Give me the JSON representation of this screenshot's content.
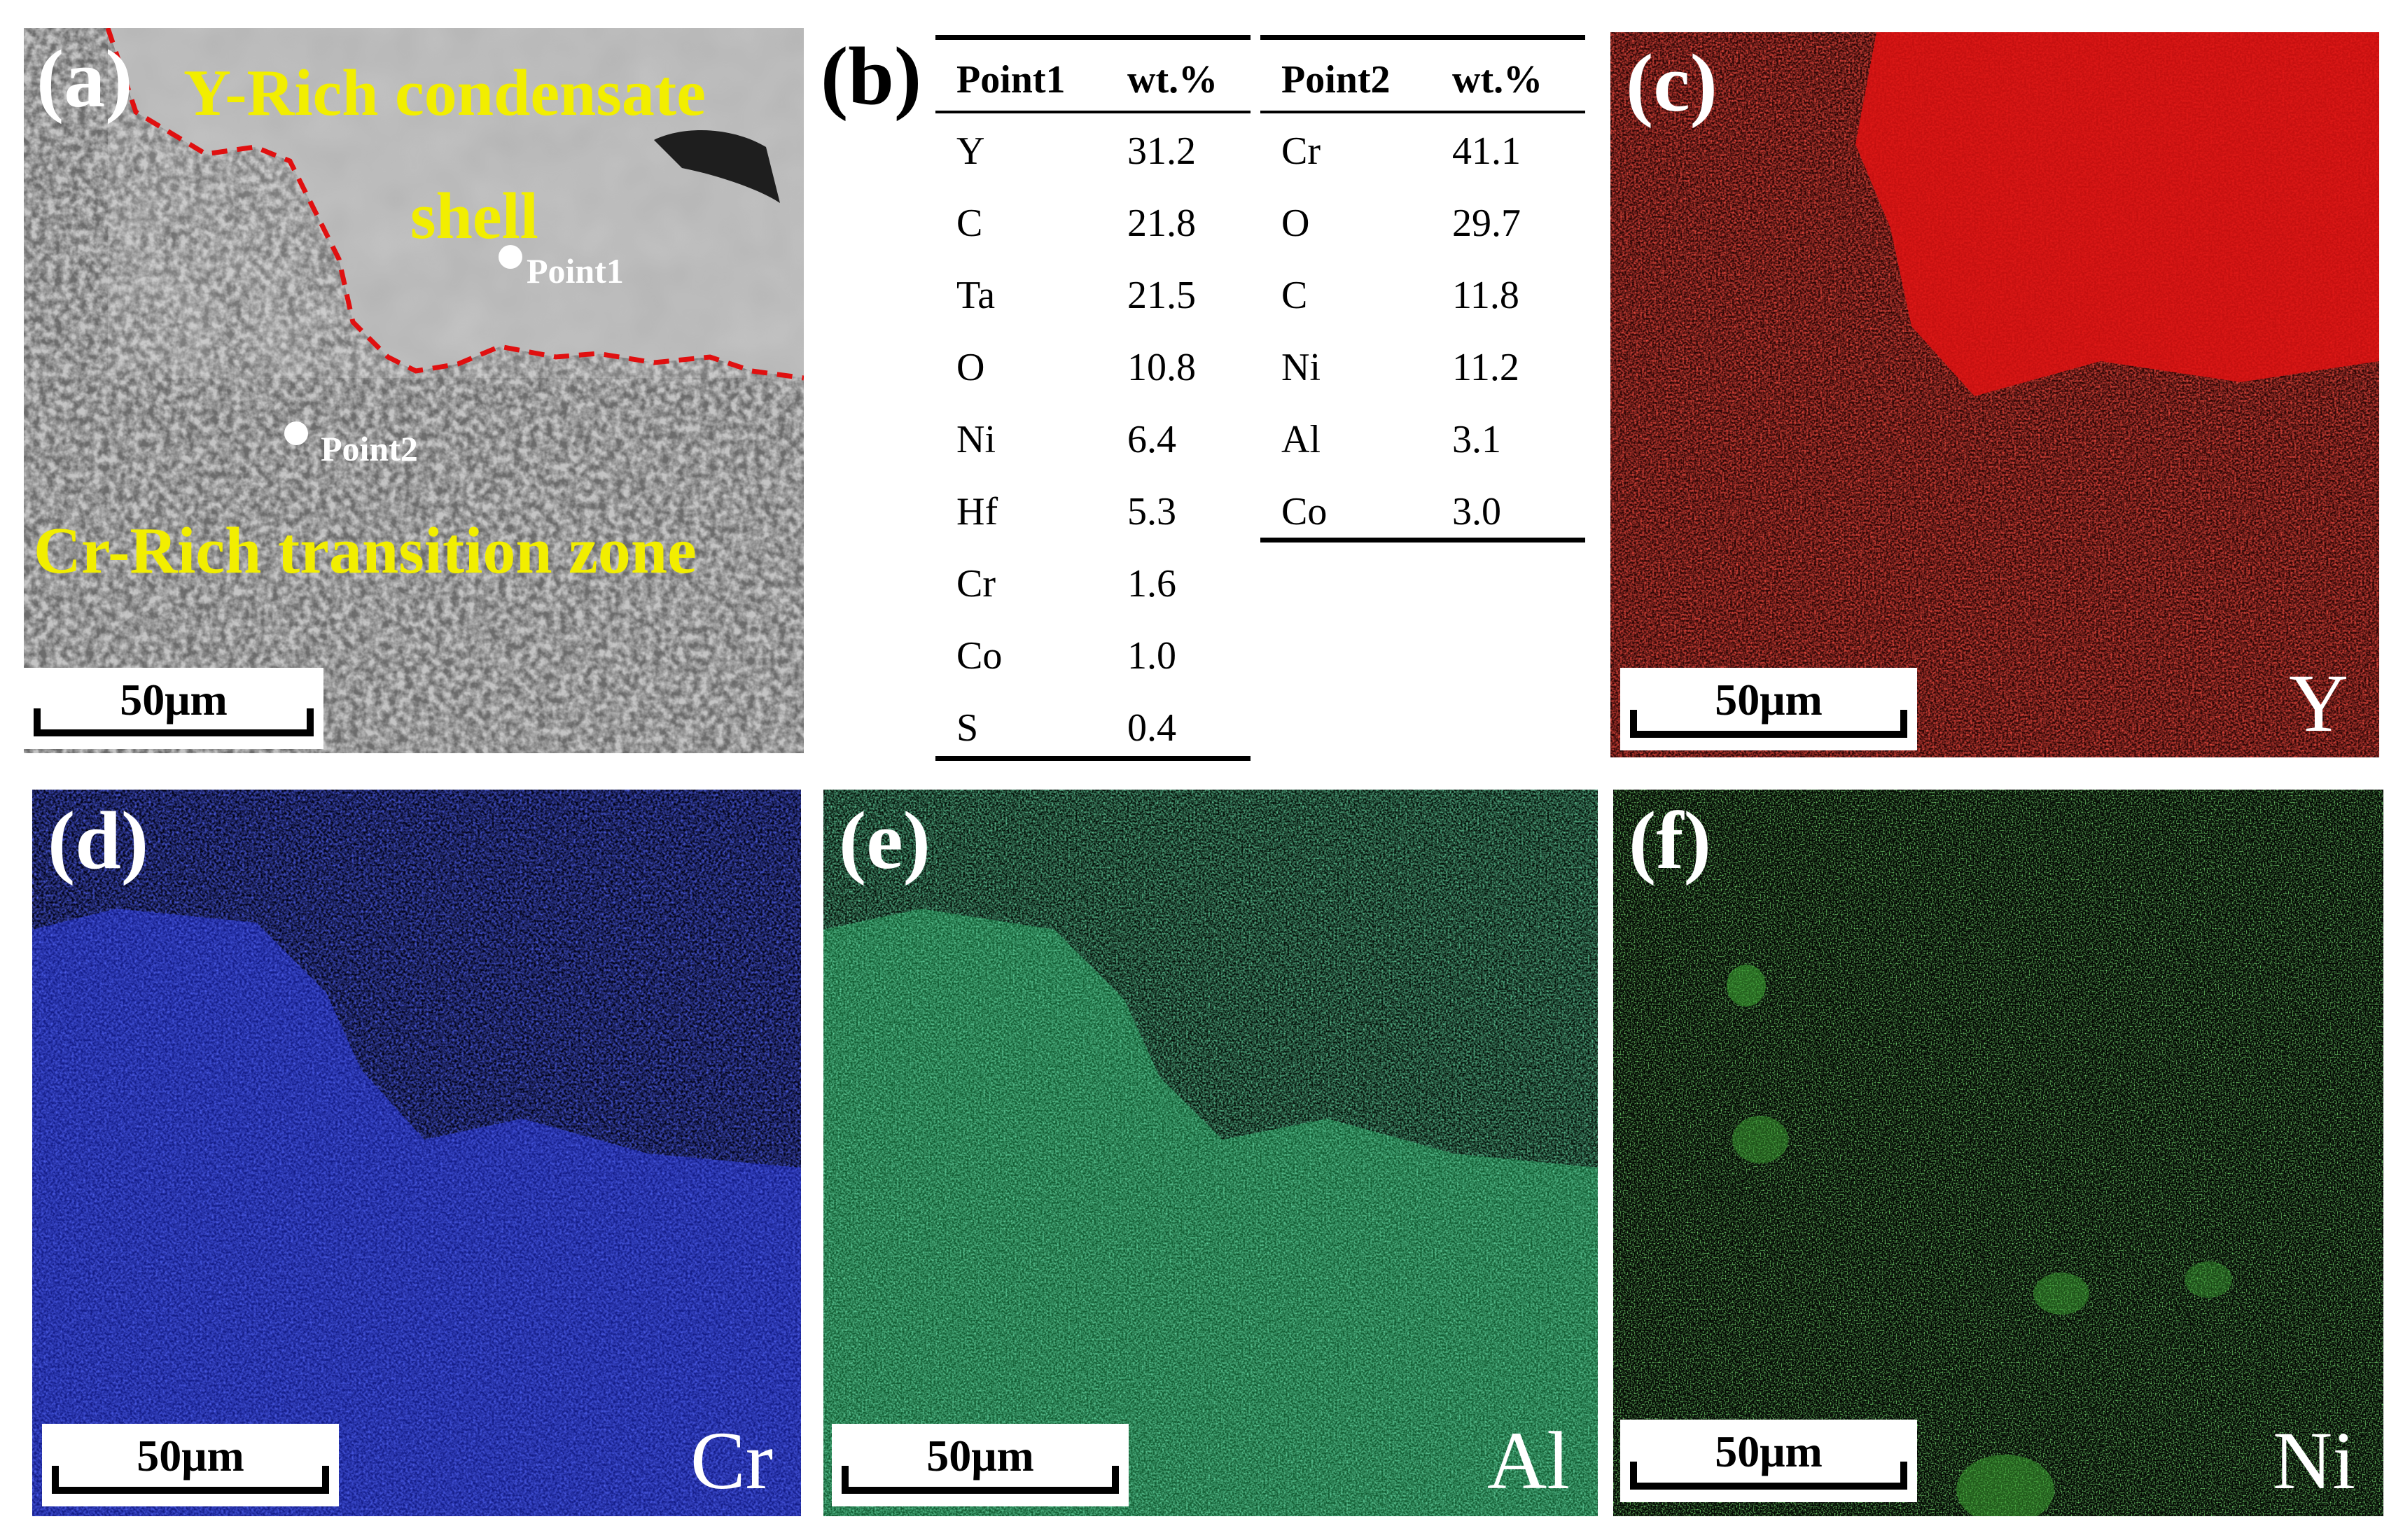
{
  "panels": {
    "a": {
      "label": "(a)",
      "region_top": "Y-Rich condensate",
      "region_top_2": "shell",
      "region_bottom": "Cr-Rich transition zone",
      "point1": "Point1",
      "point2": "Point2",
      "scale": "50μm"
    },
    "b": {
      "label": "(b)",
      "table1": {
        "headers": [
          "Point1",
          "wt.%"
        ],
        "rows": [
          [
            "Y",
            "31.2"
          ],
          [
            "C",
            "21.8"
          ],
          [
            "Ta",
            "21.5"
          ],
          [
            "O",
            "10.8"
          ],
          [
            "Ni",
            "6.4"
          ],
          [
            "Hf",
            "5.3"
          ],
          [
            "Cr",
            "1.6"
          ],
          [
            "Co",
            "1.0"
          ],
          [
            "S",
            "0.4"
          ]
        ]
      },
      "table2": {
        "headers": [
          "Point2",
          "wt.%"
        ],
        "rows": [
          [
            "Cr",
            "41.1"
          ],
          [
            "O",
            "29.7"
          ],
          [
            "C",
            "11.8"
          ],
          [
            "Ni",
            "11.2"
          ],
          [
            "Al",
            "3.1"
          ],
          [
            "Co",
            "3.0"
          ]
        ]
      }
    },
    "c": {
      "label": "(c)",
      "element": "Y",
      "scale": "50μm",
      "color": "#d81010"
    },
    "d": {
      "label": "(d)",
      "element": "Cr",
      "scale": "50μm",
      "color": "#1a2ad8"
    },
    "e": {
      "label": "(e)",
      "element": "Al",
      "scale": "50μm",
      "color": "#22b060"
    },
    "f": {
      "label": "(f)",
      "element": "Ni",
      "scale": "50μm",
      "color": "#3ac030"
    }
  },
  "colors": {
    "annotation_yellow": "#f2ee00",
    "boundary_dashed": "#e01010"
  }
}
